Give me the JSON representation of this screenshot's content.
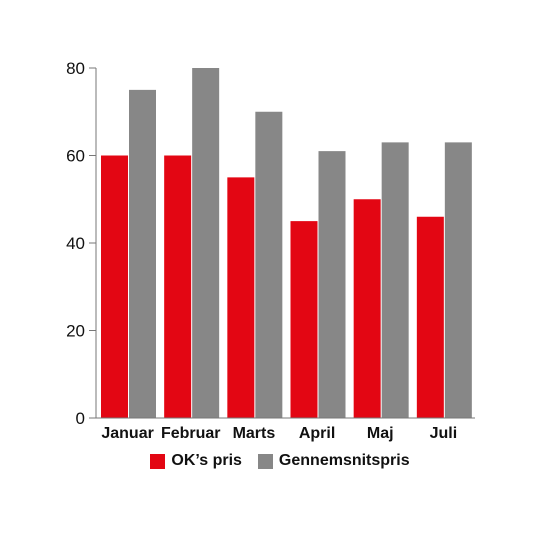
{
  "chart_data": {
    "type": "bar",
    "categories": [
      "Januar",
      "Februar",
      "Marts",
      "April",
      "Maj",
      "Juli"
    ],
    "series": [
      {
        "name": "OK’s pris",
        "color": "#e30613",
        "values": [
          60,
          60,
          55,
          45,
          50,
          46
        ]
      },
      {
        "name": "Gennemsnitspris",
        "color": "#878787",
        "values": [
          75,
          80,
          70,
          61,
          63,
          63
        ]
      }
    ],
    "title": "",
    "xlabel": "",
    "ylabel": "",
    "ylim": [
      0,
      80
    ],
    "yticks": [
      0,
      20,
      40,
      60,
      80
    ],
    "grid": false,
    "legend_position": "bottom"
  }
}
